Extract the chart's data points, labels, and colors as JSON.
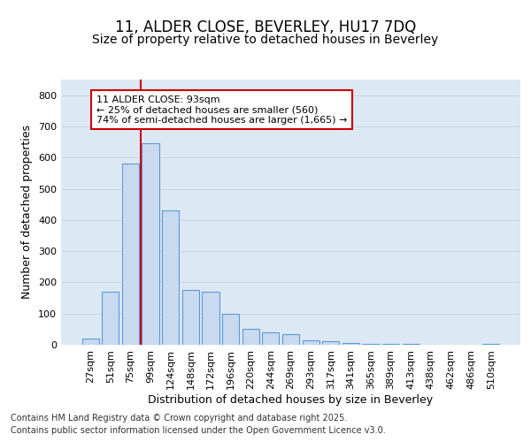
{
  "title_line1": "11, ALDER CLOSE, BEVERLEY, HU17 7DQ",
  "title_line2": "Size of property relative to detached houses in Beverley",
  "xlabel": "Distribution of detached houses by size in Beverley",
  "ylabel": "Number of detached properties",
  "categories": [
    "27sqm",
    "51sqm",
    "75sqm",
    "99sqm",
    "124sqm",
    "148sqm",
    "172sqm",
    "196sqm",
    "220sqm",
    "244sqm",
    "269sqm",
    "293sqm",
    "317sqm",
    "341sqm",
    "365sqm",
    "389sqm",
    "413sqm",
    "438sqm",
    "462sqm",
    "486sqm",
    "510sqm"
  ],
  "values": [
    20,
    170,
    580,
    645,
    430,
    175,
    170,
    100,
    52,
    40,
    33,
    13,
    10,
    5,
    4,
    3,
    2,
    1,
    1,
    1,
    2
  ],
  "bar_color": "#c8d9f0",
  "bar_edge_color": "#5b9bd5",
  "vline_color": "#cc0000",
  "vline_pos": 2.5,
  "annotation_line1": "11 ALDER CLOSE: 93sqm",
  "annotation_line2": "← 25% of detached houses are smaller (560)",
  "annotation_line3": "74% of semi-detached houses are larger (1,665) →",
  "annotation_box_color": "#cc0000",
  "annotation_box_fill": "white",
  "ylim": [
    0,
    850
  ],
  "yticks": [
    0,
    100,
    200,
    300,
    400,
    500,
    600,
    700,
    800
  ],
  "grid_color": "#c8d0dc",
  "bg_color": "#dde8f5",
  "footer_line1": "Contains HM Land Registry data © Crown copyright and database right 2025.",
  "footer_line2": "Contains public sector information licensed under the Open Government Licence v3.0.",
  "title_fontsize": 12,
  "subtitle_fontsize": 10,
  "axis_label_fontsize": 9,
  "tick_fontsize": 8,
  "footer_fontsize": 7
}
